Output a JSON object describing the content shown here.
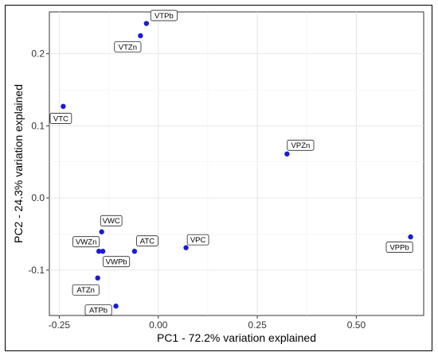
{
  "chart_data": {
    "type": "scatter",
    "title": "",
    "xlabel": "PC1 - 72.2% variation explained",
    "ylabel": "PC2 - 24.3% variation explained",
    "xlim": [
      -0.275,
      0.67
    ],
    "ylim": [
      -0.163,
      0.258
    ],
    "xticks": [
      -0.25,
      0.0,
      0.25,
      0.5
    ],
    "xtick_labels": [
      "-0.25",
      "0.00",
      "0.25",
      "0.50"
    ],
    "yticks": [
      -0.1,
      0.0,
      0.1,
      0.2
    ],
    "ytick_labels": [
      "-0.1",
      "0.0",
      "0.1",
      "0.2"
    ],
    "grid": true,
    "point_color": "#1a1adb",
    "points": [
      {
        "label": "VTPb",
        "x": -0.03,
        "y": 0.242
      },
      {
        "label": "VTZn",
        "x": -0.045,
        "y": 0.225
      },
      {
        "label": "VTC",
        "x": -0.24,
        "y": 0.127
      },
      {
        "label": "VPZn",
        "x": 0.325,
        "y": 0.061
      },
      {
        "label": "VPPb",
        "x": 0.637,
        "y": -0.054
      },
      {
        "label": "VPC",
        "x": 0.07,
        "y": -0.069
      },
      {
        "label": "ATC",
        "x": -0.06,
        "y": -0.074
      },
      {
        "label": "VWC",
        "x": -0.143,
        "y": -0.047
      },
      {
        "label": "VWZn",
        "x": -0.15,
        "y": -0.074
      },
      {
        "label": "VWPb",
        "x": -0.14,
        "y": -0.074
      },
      {
        "label": "ATZn",
        "x": -0.153,
        "y": -0.111
      },
      {
        "label": "ATPb",
        "x": -0.107,
        "y": -0.15
      }
    ]
  }
}
